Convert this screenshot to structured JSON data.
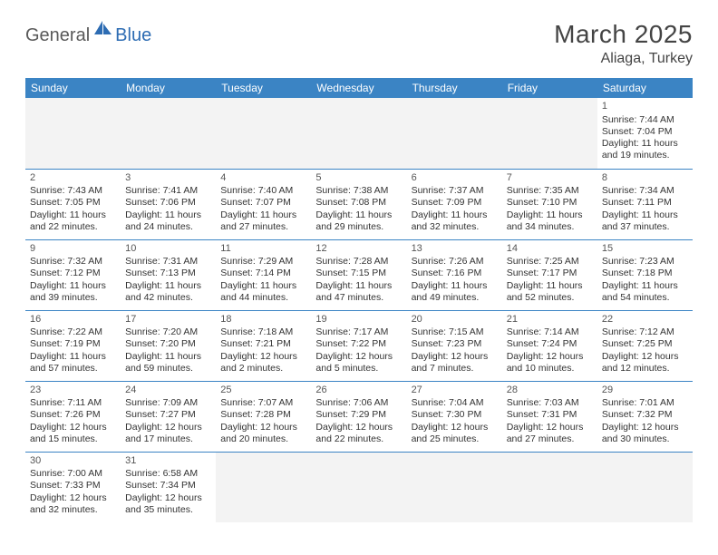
{
  "logo": {
    "part1": "General",
    "part2": "Blue"
  },
  "title": "March 2025",
  "location": "Aliaga, Turkey",
  "colors": {
    "header_bg": "#3b84c4",
    "header_text": "#ffffff",
    "border": "#3b84c4",
    "blank_bg": "#f3f3f3",
    "text": "#333333",
    "logo_gray": "#5a5a5a",
    "logo_blue": "#2d6cb3"
  },
  "weekdays": [
    "Sunday",
    "Monday",
    "Tuesday",
    "Wednesday",
    "Thursday",
    "Friday",
    "Saturday"
  ],
  "weeks": [
    [
      null,
      null,
      null,
      null,
      null,
      null,
      {
        "day": "1",
        "sunrise": "Sunrise: 7:44 AM",
        "sunset": "Sunset: 7:04 PM",
        "daylight": "Daylight: 11 hours and 19 minutes."
      }
    ],
    [
      {
        "day": "2",
        "sunrise": "Sunrise: 7:43 AM",
        "sunset": "Sunset: 7:05 PM",
        "daylight": "Daylight: 11 hours and 22 minutes."
      },
      {
        "day": "3",
        "sunrise": "Sunrise: 7:41 AM",
        "sunset": "Sunset: 7:06 PM",
        "daylight": "Daylight: 11 hours and 24 minutes."
      },
      {
        "day": "4",
        "sunrise": "Sunrise: 7:40 AM",
        "sunset": "Sunset: 7:07 PM",
        "daylight": "Daylight: 11 hours and 27 minutes."
      },
      {
        "day": "5",
        "sunrise": "Sunrise: 7:38 AM",
        "sunset": "Sunset: 7:08 PM",
        "daylight": "Daylight: 11 hours and 29 minutes."
      },
      {
        "day": "6",
        "sunrise": "Sunrise: 7:37 AM",
        "sunset": "Sunset: 7:09 PM",
        "daylight": "Daylight: 11 hours and 32 minutes."
      },
      {
        "day": "7",
        "sunrise": "Sunrise: 7:35 AM",
        "sunset": "Sunset: 7:10 PM",
        "daylight": "Daylight: 11 hours and 34 minutes."
      },
      {
        "day": "8",
        "sunrise": "Sunrise: 7:34 AM",
        "sunset": "Sunset: 7:11 PM",
        "daylight": "Daylight: 11 hours and 37 minutes."
      }
    ],
    [
      {
        "day": "9",
        "sunrise": "Sunrise: 7:32 AM",
        "sunset": "Sunset: 7:12 PM",
        "daylight": "Daylight: 11 hours and 39 minutes."
      },
      {
        "day": "10",
        "sunrise": "Sunrise: 7:31 AM",
        "sunset": "Sunset: 7:13 PM",
        "daylight": "Daylight: 11 hours and 42 minutes."
      },
      {
        "day": "11",
        "sunrise": "Sunrise: 7:29 AM",
        "sunset": "Sunset: 7:14 PM",
        "daylight": "Daylight: 11 hours and 44 minutes."
      },
      {
        "day": "12",
        "sunrise": "Sunrise: 7:28 AM",
        "sunset": "Sunset: 7:15 PM",
        "daylight": "Daylight: 11 hours and 47 minutes."
      },
      {
        "day": "13",
        "sunrise": "Sunrise: 7:26 AM",
        "sunset": "Sunset: 7:16 PM",
        "daylight": "Daylight: 11 hours and 49 minutes."
      },
      {
        "day": "14",
        "sunrise": "Sunrise: 7:25 AM",
        "sunset": "Sunset: 7:17 PM",
        "daylight": "Daylight: 11 hours and 52 minutes."
      },
      {
        "day": "15",
        "sunrise": "Sunrise: 7:23 AM",
        "sunset": "Sunset: 7:18 PM",
        "daylight": "Daylight: 11 hours and 54 minutes."
      }
    ],
    [
      {
        "day": "16",
        "sunrise": "Sunrise: 7:22 AM",
        "sunset": "Sunset: 7:19 PM",
        "daylight": "Daylight: 11 hours and 57 minutes."
      },
      {
        "day": "17",
        "sunrise": "Sunrise: 7:20 AM",
        "sunset": "Sunset: 7:20 PM",
        "daylight": "Daylight: 11 hours and 59 minutes."
      },
      {
        "day": "18",
        "sunrise": "Sunrise: 7:18 AM",
        "sunset": "Sunset: 7:21 PM",
        "daylight": "Daylight: 12 hours and 2 minutes."
      },
      {
        "day": "19",
        "sunrise": "Sunrise: 7:17 AM",
        "sunset": "Sunset: 7:22 PM",
        "daylight": "Daylight: 12 hours and 5 minutes."
      },
      {
        "day": "20",
        "sunrise": "Sunrise: 7:15 AM",
        "sunset": "Sunset: 7:23 PM",
        "daylight": "Daylight: 12 hours and 7 minutes."
      },
      {
        "day": "21",
        "sunrise": "Sunrise: 7:14 AM",
        "sunset": "Sunset: 7:24 PM",
        "daylight": "Daylight: 12 hours and 10 minutes."
      },
      {
        "day": "22",
        "sunrise": "Sunrise: 7:12 AM",
        "sunset": "Sunset: 7:25 PM",
        "daylight": "Daylight: 12 hours and 12 minutes."
      }
    ],
    [
      {
        "day": "23",
        "sunrise": "Sunrise: 7:11 AM",
        "sunset": "Sunset: 7:26 PM",
        "daylight": "Daylight: 12 hours and 15 minutes."
      },
      {
        "day": "24",
        "sunrise": "Sunrise: 7:09 AM",
        "sunset": "Sunset: 7:27 PM",
        "daylight": "Daylight: 12 hours and 17 minutes."
      },
      {
        "day": "25",
        "sunrise": "Sunrise: 7:07 AM",
        "sunset": "Sunset: 7:28 PM",
        "daylight": "Daylight: 12 hours and 20 minutes."
      },
      {
        "day": "26",
        "sunrise": "Sunrise: 7:06 AM",
        "sunset": "Sunset: 7:29 PM",
        "daylight": "Daylight: 12 hours and 22 minutes."
      },
      {
        "day": "27",
        "sunrise": "Sunrise: 7:04 AM",
        "sunset": "Sunset: 7:30 PM",
        "daylight": "Daylight: 12 hours and 25 minutes."
      },
      {
        "day": "28",
        "sunrise": "Sunrise: 7:03 AM",
        "sunset": "Sunset: 7:31 PM",
        "daylight": "Daylight: 12 hours and 27 minutes."
      },
      {
        "day": "29",
        "sunrise": "Sunrise: 7:01 AM",
        "sunset": "Sunset: 7:32 PM",
        "daylight": "Daylight: 12 hours and 30 minutes."
      }
    ],
    [
      {
        "day": "30",
        "sunrise": "Sunrise: 7:00 AM",
        "sunset": "Sunset: 7:33 PM",
        "daylight": "Daylight: 12 hours and 32 minutes."
      },
      {
        "day": "31",
        "sunrise": "Sunrise: 6:58 AM",
        "sunset": "Sunset: 7:34 PM",
        "daylight": "Daylight: 12 hours and 35 minutes."
      },
      null,
      null,
      null,
      null,
      null
    ]
  ]
}
